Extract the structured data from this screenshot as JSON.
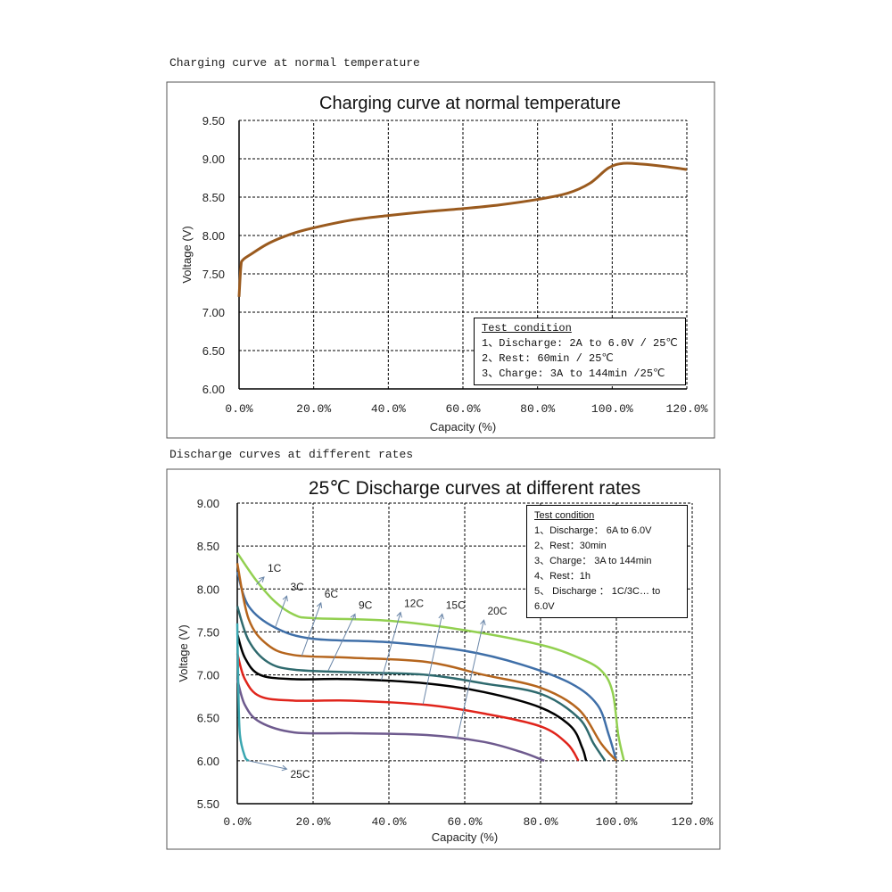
{
  "captions": {
    "top": "Charging curve at normal temperature",
    "bottom": "Discharge curves at different rates"
  },
  "chart_data": [
    {
      "type": "line",
      "title": "Charging curve at normal temperature",
      "xlabel": "Capacity (%)",
      "ylabel": "Voltage (V)",
      "xlim": [
        0,
        120
      ],
      "ylim": [
        6.0,
        9.5
      ],
      "grid": true,
      "xticks": [
        "0.0%",
        "20.0%",
        "40.0%",
        "60.0%",
        "80.0%",
        "100.0%",
        "120.0%"
      ],
      "yticks": [
        "6.00",
        "6.50",
        "7.00",
        "7.50",
        "8.00",
        "8.50",
        "9.00",
        "9.50"
      ],
      "legend_box": {
        "title": "Test condition",
        "lines": [
          "1、Discharge: 2A to 6.0V / 25℃",
          "2、Rest: 60min / 25℃",
          "3、Charge: 3A  to 144min /25℃"
        ]
      },
      "series": [
        {
          "name": "charge",
          "color": "#9a5a1e",
          "points": [
            [
              0,
              7.2
            ],
            [
              0.5,
              7.6
            ],
            [
              1,
              7.68
            ],
            [
              3,
              7.75
            ],
            [
              8,
              7.9
            ],
            [
              14,
              8.02
            ],
            [
              20,
              8.1
            ],
            [
              30,
              8.2
            ],
            [
              40,
              8.26
            ],
            [
              50,
              8.31
            ],
            [
              60,
              8.35
            ],
            [
              70,
              8.4
            ],
            [
              80,
              8.47
            ],
            [
              88,
              8.55
            ],
            [
              94,
              8.68
            ],
            [
              99,
              8.88
            ],
            [
              103,
              8.94
            ],
            [
              108,
              8.93
            ],
            [
              114,
              8.9
            ],
            [
              120,
              8.86
            ]
          ]
        }
      ]
    },
    {
      "type": "line",
      "title": "25℃ Discharge curves at different rates",
      "xlabel": "Capacity (%)",
      "ylabel": "Voltage (V)",
      "xlim": [
        0,
        120
      ],
      "ylim": [
        5.5,
        9.0
      ],
      "grid": true,
      "xticks": [
        "0.0%",
        "20.0%",
        "40.0%",
        "60.0%",
        "80.0%",
        "100.0%",
        "120.0%"
      ],
      "yticks": [
        "5.50",
        "6.00",
        "6.50",
        "7.00",
        "7.50",
        "8.00",
        "8.50",
        "9.00"
      ],
      "legend_box": {
        "title": "Test condition",
        "lines": [
          "1、Discharge： 6A to 6.0V",
          "2、Rest：30min",
          "3、Charge： 3A  to 144min",
          "4、Rest：1h",
          "5、 Discharge ： 1C/3C… to 6.0V"
        ]
      },
      "series": [
        {
          "name": "1C",
          "color": "#92d050",
          "points": [
            [
              0,
              8.42
            ],
            [
              5,
              8.1
            ],
            [
              10,
              7.85
            ],
            [
              15,
              7.7
            ],
            [
              20,
              7.66
            ],
            [
              40,
              7.63
            ],
            [
              60,
              7.52
            ],
            [
              80,
              7.35
            ],
            [
              90,
              7.2
            ],
            [
              96,
              7.05
            ],
            [
              99,
              6.8
            ],
            [
              100.5,
              6.3
            ],
            [
              102,
              6.0
            ]
          ],
          "label_at": [
            8,
            8.2
          ],
          "arrow_from": [
            5,
            8.05
          ]
        },
        {
          "name": "3C",
          "color": "#3f6fa8",
          "points": [
            [
              0,
              8.2
            ],
            [
              3,
              7.8
            ],
            [
              10,
              7.55
            ],
            [
              20,
              7.42
            ],
            [
              40,
              7.38
            ],
            [
              60,
              7.28
            ],
            [
              75,
              7.12
            ],
            [
              88,
              6.9
            ],
            [
              95,
              6.65
            ],
            [
              98,
              6.3
            ],
            [
              100,
              6.0
            ]
          ],
          "label_at": [
            14,
            7.98
          ],
          "arrow_from": [
            10,
            7.55
          ]
        },
        {
          "name": "6C",
          "color": "#b5651d",
          "points": [
            [
              0,
              8.3
            ],
            [
              3,
              7.65
            ],
            [
              8,
              7.35
            ],
            [
              15,
              7.23
            ],
            [
              30,
              7.2
            ],
            [
              50,
              7.15
            ],
            [
              65,
              7.0
            ],
            [
              80,
              6.85
            ],
            [
              90,
              6.6
            ],
            [
              96,
              6.2
            ],
            [
              100,
              6.0
            ]
          ],
          "label_at": [
            23,
            7.9
          ],
          "arrow_from": [
            17,
            7.22
          ]
        },
        {
          "name": "9C",
          "color": "#2f6a6e",
          "points": [
            [
              0,
              7.8
            ],
            [
              3,
              7.4
            ],
            [
              8,
              7.15
            ],
            [
              15,
              7.06
            ],
            [
              30,
              7.03
            ],
            [
              50,
              7.0
            ],
            [
              65,
              6.9
            ],
            [
              80,
              6.78
            ],
            [
              90,
              6.5
            ],
            [
              94,
              6.2
            ],
            [
              97,
              6.0
            ]
          ],
          "label_at": [
            32,
            7.77
          ],
          "arrow_from": [
            24,
            7.05
          ]
        },
        {
          "name": "12C",
          "color": "#000000",
          "points": [
            [
              0,
              7.48
            ],
            [
              2,
              7.2
            ],
            [
              6,
              7.0
            ],
            [
              15,
              6.95
            ],
            [
              30,
              6.95
            ],
            [
              50,
              6.9
            ],
            [
              65,
              6.8
            ],
            [
              80,
              6.62
            ],
            [
              88,
              6.4
            ],
            [
              91,
              6.15
            ],
            [
              92,
              6.0
            ]
          ],
          "label_at": [
            44,
            7.79
          ],
          "arrow_from": [
            38,
            6.94
          ]
        },
        {
          "name": "15C",
          "color": "#e0241b",
          "points": [
            [
              0,
              7.25
            ],
            [
              2,
              6.95
            ],
            [
              6,
              6.75
            ],
            [
              15,
              6.7
            ],
            [
              30,
              6.7
            ],
            [
              50,
              6.65
            ],
            [
              65,
              6.55
            ],
            [
              80,
              6.4
            ],
            [
              87,
              6.2
            ],
            [
              90,
              6.0
            ]
          ],
          "label_at": [
            55,
            7.77
          ],
          "arrow_from": [
            49,
            6.66
          ]
        },
        {
          "name": "20C",
          "color": "#6e5a8e",
          "points": [
            [
              0,
              6.95
            ],
            [
              2,
              6.65
            ],
            [
              6,
              6.45
            ],
            [
              15,
              6.33
            ],
            [
              30,
              6.32
            ],
            [
              50,
              6.3
            ],
            [
              65,
              6.22
            ],
            [
              75,
              6.1
            ],
            [
              81,
              6.0
            ]
          ],
          "label_at": [
            66,
            7.7
          ],
          "arrow_from": [
            58,
            6.26
          ]
        },
        {
          "name": "25C",
          "color": "#3aa6b0",
          "points": [
            [
              0,
              7.6
            ],
            [
              0.3,
              6.8
            ],
            [
              0.7,
              6.3
            ],
            [
              2,
              6.05
            ],
            [
              3,
              6.0
            ]
          ],
          "label_at": [
            14,
            5.8
          ],
          "arrow_from": [
            3,
            6.0
          ]
        }
      ]
    }
  ]
}
